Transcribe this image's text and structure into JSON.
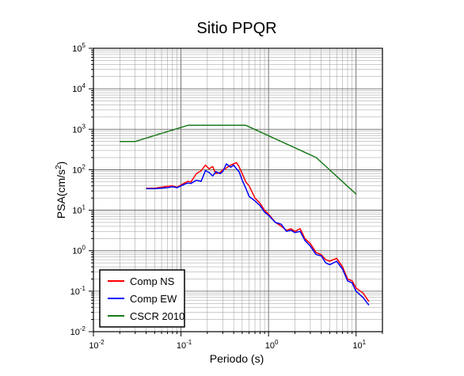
{
  "chart_data": {
    "type": "line",
    "title": "Sitio PPQR",
    "xlabel": "Periodo (s)",
    "ylabel_base": "PSA(cm/s",
    "ylabel_sup": "2",
    "ylabel_close": ")",
    "xscale": "log",
    "yscale": "log",
    "xlim": [
      0.01,
      20
    ],
    "ylim": [
      0.01,
      100000
    ],
    "grid": true,
    "legend_position": "bottom-left",
    "x_ticks": [
      {
        "base": "10",
        "exp": "-2",
        "value": 0.01
      },
      {
        "base": "10",
        "exp": "-1",
        "value": 0.1
      },
      {
        "base": "10",
        "exp": "0",
        "value": 1
      },
      {
        "base": "10",
        "exp": "1",
        "value": 10
      }
    ],
    "y_ticks": [
      {
        "base": "10",
        "exp": "-2",
        "value": 0.01
      },
      {
        "base": "10",
        "exp": "-1",
        "value": 0.1
      },
      {
        "base": "10",
        "exp": "0",
        "value": 1
      },
      {
        "base": "10",
        "exp": "1",
        "value": 10
      },
      {
        "base": "10",
        "exp": "2",
        "value": 100
      },
      {
        "base": "10",
        "exp": "3",
        "value": 1000
      },
      {
        "base": "10",
        "exp": "4",
        "value": 10000
      },
      {
        "base": "10",
        "exp": "5",
        "value": 100000
      }
    ],
    "series": [
      {
        "name": "Comp NS",
        "color": "#ff0000",
        "x": [
          0.04,
          0.05,
          0.06,
          0.07,
          0.08,
          0.09,
          0.1,
          0.11,
          0.12,
          0.13,
          0.15,
          0.17,
          0.19,
          0.21,
          0.23,
          0.25,
          0.28,
          0.3,
          0.33,
          0.37,
          0.4,
          0.43,
          0.46,
          0.5,
          0.55,
          0.6,
          0.7,
          0.8,
          0.9,
          1.0,
          1.2,
          1.4,
          1.6,
          1.8,
          2.0,
          2.3,
          2.6,
          3.0,
          3.5,
          4.0,
          4.5,
          5.0,
          6.0,
          7.0,
          8.0,
          9.0,
          10.0,
          12.0,
          14.0
        ],
        "y": [
          35,
          35,
          37,
          39,
          40,
          37,
          42,
          47,
          52,
          50,
          80,
          95,
          130,
          105,
          120,
          80,
          85,
          100,
          110,
          130,
          140,
          150,
          120,
          80,
          50,
          40,
          20,
          15,
          10,
          8,
          5,
          4,
          3.2,
          3.5,
          3,
          3.5,
          2,
          1.5,
          0.9,
          0.8,
          0.6,
          0.55,
          0.65,
          0.4,
          0.2,
          0.18,
          0.12,
          0.09,
          0.055
        ]
      },
      {
        "name": "Comp EW",
        "color": "#0000ff",
        "x": [
          0.04,
          0.05,
          0.06,
          0.07,
          0.08,
          0.09,
          0.1,
          0.11,
          0.12,
          0.13,
          0.15,
          0.17,
          0.19,
          0.21,
          0.23,
          0.25,
          0.28,
          0.3,
          0.33,
          0.37,
          0.4,
          0.43,
          0.46,
          0.5,
          0.55,
          0.6,
          0.7,
          0.8,
          0.9,
          1.0,
          1.2,
          1.4,
          1.6,
          1.8,
          2.0,
          2.3,
          2.6,
          3.0,
          3.5,
          4.0,
          4.5,
          5.0,
          6.0,
          7.0,
          8.0,
          9.0,
          10.0,
          12.0,
          14.0
        ],
        "y": [
          34,
          34,
          35,
          36,
          38,
          36,
          40,
          44,
          47,
          46,
          55,
          52,
          95,
          85,
          70,
          90,
          80,
          90,
          140,
          115,
          130,
          105,
          90,
          55,
          35,
          22,
          17,
          13,
          9,
          7.5,
          5,
          4.5,
          3,
          3.2,
          2.8,
          3,
          1.8,
          1.3,
          0.8,
          0.75,
          0.5,
          0.45,
          0.55,
          0.35,
          0.18,
          0.16,
          0.1,
          0.07,
          0.045
        ]
      },
      {
        "name": "CSCR 2010",
        "color": "#1a7a1a",
        "x": [
          0.02,
          0.03,
          0.12,
          0.55,
          3.5,
          10.0
        ],
        "y": [
          500,
          500,
          1250,
          1250,
          200,
          25
        ]
      }
    ]
  }
}
